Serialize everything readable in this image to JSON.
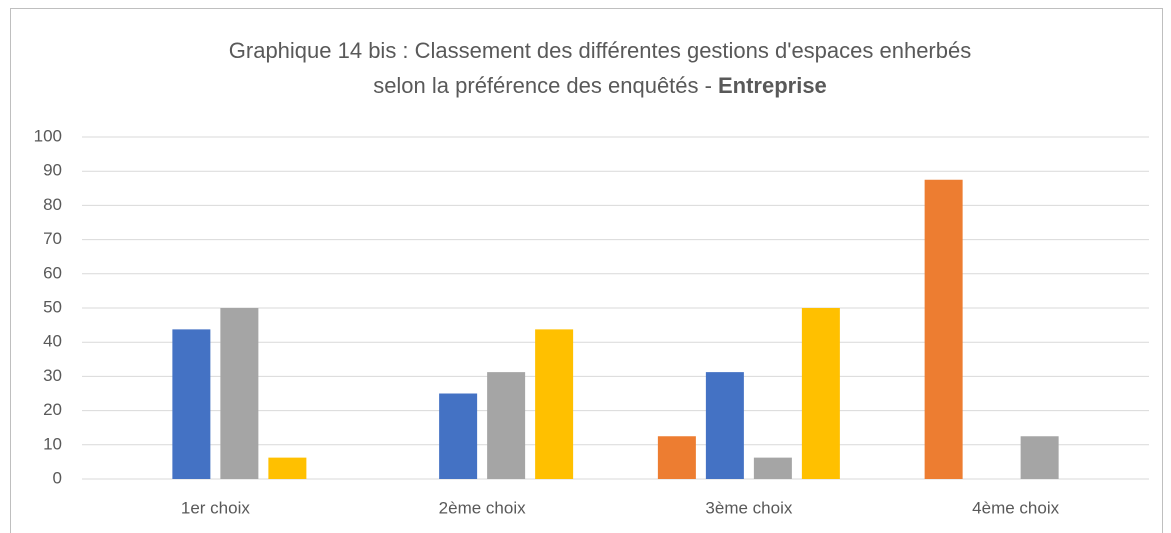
{
  "chart_data": {
    "type": "bar",
    "title": [
      "Graphique 14 bis : Classement des différentes gestions d'espaces enherbés",
      "selon la préférence des enquêtés -"
    ],
    "title_emphasis": "Entreprise",
    "categories": [
      "1er choix",
      "2ème choix",
      "3ème choix",
      "4ème choix"
    ],
    "series": [
      {
        "color": "#ed7d31",
        "values": [
          0,
          0,
          12.5,
          87.5
        ]
      },
      {
        "color": "#4472c4",
        "values": [
          43.75,
          25,
          31.25,
          0
        ]
      },
      {
        "color": "#a5a5a5",
        "values": [
          50,
          31.25,
          6.25,
          12.5
        ]
      },
      {
        "color": "#ffc000",
        "values": [
          6.25,
          43.75,
          50,
          0
        ]
      }
    ],
    "ylim": [
      0,
      100
    ],
    "yticks": [
      0,
      10,
      20,
      30,
      40,
      50,
      60,
      70,
      80,
      90,
      100
    ],
    "grid": true
  }
}
